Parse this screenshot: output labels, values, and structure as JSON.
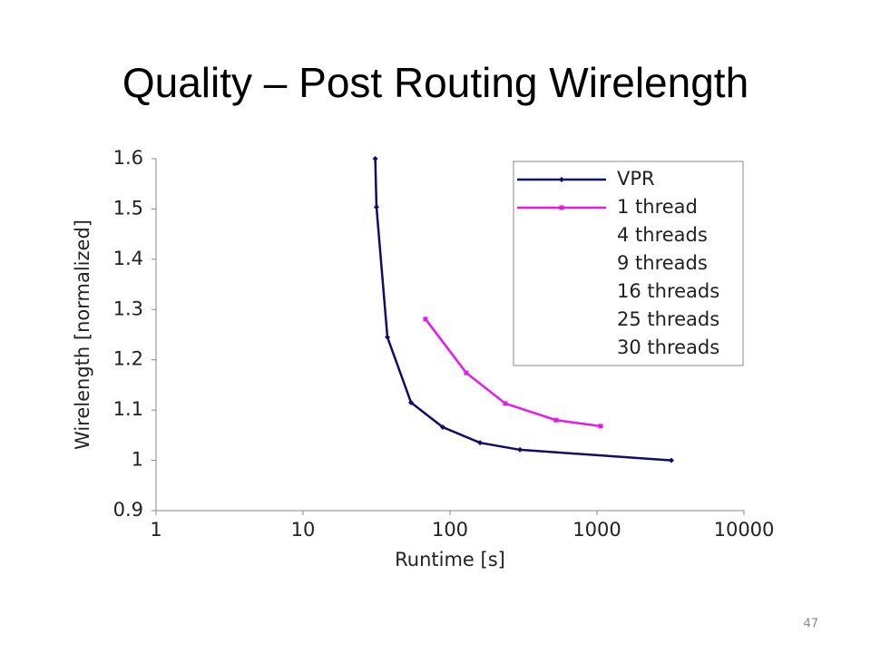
{
  "chart_data": {
    "type": "line",
    "title": "Quality – Post Routing Wirelength",
    "x_label": "Runtime [s]",
    "y_label": "Wirelength [normalized]",
    "xscale": "log",
    "xlim": [
      1,
      10000
    ],
    "xticks": [
      1,
      10,
      100,
      1000,
      10000
    ],
    "ylim": [
      0.9,
      1.6
    ],
    "yticks": [
      0.9,
      1,
      1.1,
      1.2,
      1.3,
      1.4,
      1.5,
      1.6
    ],
    "grid": false,
    "legend": "upper right",
    "series": [
      {
        "name": "VPR",
        "color": "#0d0d6b",
        "marker": "diamond",
        "x": [
          31,
          31.6,
          37.5,
          54.3,
          89.3,
          160,
          299,
          3208
        ],
        "values": [
          1.6,
          1.504,
          1.245,
          1.115,
          1.066,
          1.035,
          1.021,
          1.0
        ]
      },
      {
        "name": "1 thread",
        "color": "#e619e6",
        "marker": "square",
        "x": [
          68.1,
          129,
          238,
          527,
          1059
        ],
        "values": [
          1.281,
          1.174,
          1.113,
          1.08,
          1.068
        ]
      },
      {
        "name": "4 threads",
        "color": "#ffffff",
        "x": [],
        "values": []
      },
      {
        "name": "9 threads",
        "color": "#ffffff",
        "x": [],
        "values": []
      },
      {
        "name": "16 threads",
        "color": "#ffffff",
        "x": [],
        "values": []
      },
      {
        "name": "25 threads",
        "color": "#ffffff",
        "x": [],
        "values": []
      },
      {
        "name": "30 threads",
        "color": "#ffffff",
        "x": [],
        "values": []
      }
    ]
  },
  "page_number": "47"
}
